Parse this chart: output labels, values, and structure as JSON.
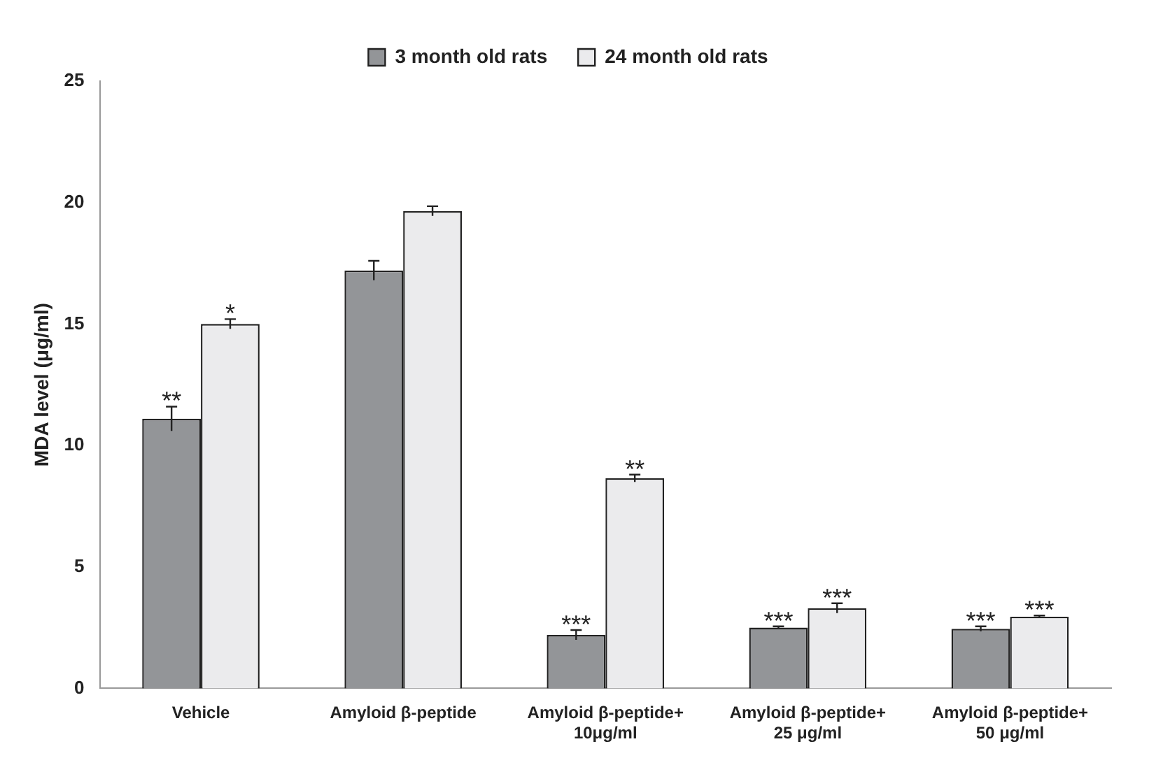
{
  "chart_data": {
    "type": "bar",
    "ylabel": "MDA level (μg/ml)",
    "categories": [
      "Vehicle",
      "Amyloid β-peptide",
      "Amyloid β-peptide+\n10μg/ml",
      "Amyloid β-peptide+\n25 μg/ml",
      "Amyloid β-peptide+\n50 μg/ml"
    ],
    "series": [
      {
        "name": "3 month old rats",
        "color": "#939598",
        "values": [
          11.1,
          17.2,
          2.2,
          2.5,
          2.45
        ],
        "errors": [
          0.5,
          0.4,
          0.2,
          0.05,
          0.1
        ]
      },
      {
        "name": "24 month old rats",
        "color": "#ebebed",
        "values": [
          15.0,
          19.65,
          8.65,
          3.3,
          2.95
        ],
        "errors": [
          0.2,
          0.2,
          0.15,
          0.2,
          0.05
        ]
      }
    ],
    "ylim": [
      0,
      25
    ],
    "yticks": [
      0,
      5,
      10,
      15,
      20,
      25
    ],
    "grid": false,
    "legend": "top",
    "annotations": [
      {
        "text": "**",
        "x": "Vehicle",
        "y": 11.1
      },
      {
        "text": "*",
        "x": "Vehicle",
        "y": 15.0
      },
      {
        "text": "***",
        "x": "Amyloid β-peptide+\n10μg/ml",
        "y": 2.2
      },
      {
        "text": "**",
        "x": "Amyloid β-peptide+\n10μg/ml",
        "y": 8.65
      },
      {
        "text": "***",
        "x": "Amyloid β-peptide+\n25 μg/ml",
        "y": 2.5
      },
      {
        "text": "***",
        "x": "Amyloid β-peptide+\n25 μg/ml",
        "y": 3.3
      },
      {
        "text": "***",
        "x": "Amyloid β-peptide+\n50 μg/ml",
        "y": 2.45
      },
      {
        "text": "***",
        "x": "Amyloid β-peptide+\n50 μg/ml",
        "y": 2.95
      }
    ]
  }
}
